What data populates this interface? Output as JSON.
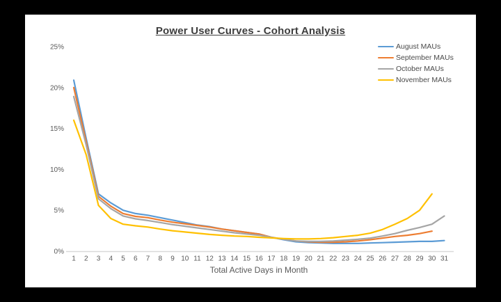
{
  "chart_data": {
    "type": "line",
    "title": "Power User Curves - Cohort Analysis",
    "xlabel": "Total Active Days in Month",
    "ylabel": "",
    "xlim": [
      1,
      31
    ],
    "ylim": [
      0,
      25
    ],
    "grid": false,
    "legend_position": "top-right",
    "x": [
      1,
      2,
      3,
      4,
      5,
      6,
      7,
      8,
      9,
      10,
      11,
      12,
      13,
      14,
      15,
      16,
      17,
      18,
      19,
      20,
      21,
      22,
      23,
      24,
      25,
      26,
      27,
      28,
      29,
      30,
      31
    ],
    "y_ticks": [
      {
        "value": 25,
        "label": "25%"
      },
      {
        "value": 20,
        "label": "20%"
      },
      {
        "value": 15,
        "label": "15%"
      },
      {
        "value": 10,
        "label": "10%"
      },
      {
        "value": 5,
        "label": "5%"
      },
      {
        "value": 0,
        "label": "0%"
      }
    ],
    "series": [
      {
        "name": "August MAUs",
        "color": "#5B9BD5",
        "values": [
          20.9,
          13.8,
          7.0,
          5.9,
          5.0,
          4.6,
          4.4,
          4.1,
          3.8,
          3.5,
          3.2,
          3.0,
          2.7,
          2.5,
          2.3,
          2.1,
          1.7,
          1.4,
          1.15,
          1.05,
          1.0,
          0.95,
          0.95,
          0.95,
          1.0,
          1.05,
          1.1,
          1.15,
          1.2,
          1.2,
          1.3
        ]
      },
      {
        "name": "September MAUs",
        "color": "#ED7D31",
        "values": [
          20.0,
          13.4,
          6.7,
          5.5,
          4.6,
          4.25,
          4.1,
          3.8,
          3.55,
          3.35,
          3.15,
          2.95,
          2.7,
          2.5,
          2.3,
          2.1,
          1.7,
          1.45,
          1.25,
          1.15,
          1.1,
          1.1,
          1.15,
          1.25,
          1.4,
          1.6,
          1.8,
          1.95,
          2.15,
          2.45
        ]
      },
      {
        "name": "October MAUs",
        "color": "#A5A5A5",
        "values": [
          18.9,
          13.0,
          6.4,
          5.2,
          4.3,
          3.95,
          3.75,
          3.5,
          3.25,
          3.05,
          2.85,
          2.65,
          2.45,
          2.25,
          2.1,
          1.95,
          1.7,
          1.45,
          1.25,
          1.2,
          1.2,
          1.25,
          1.35,
          1.45,
          1.6,
          1.85,
          2.15,
          2.55,
          2.9,
          3.3,
          4.3
        ]
      },
      {
        "name": "November MAUs",
        "color": "#FFC000",
        "values": [
          16.0,
          11.8,
          5.6,
          4.0,
          3.3,
          3.1,
          2.95,
          2.7,
          2.5,
          2.35,
          2.2,
          2.05,
          1.95,
          1.85,
          1.8,
          1.7,
          1.62,
          1.55,
          1.5,
          1.5,
          1.55,
          1.65,
          1.8,
          1.95,
          2.2,
          2.65,
          3.3,
          4.0,
          5.0,
          7.0
        ]
      }
    ],
    "colors": {
      "axis_line": "#d9d9d9",
      "tick_label": "#595959",
      "title_text": "#3d3d3d",
      "canvas_bg": "#ffffff",
      "frame_bg": "#000000"
    }
  }
}
